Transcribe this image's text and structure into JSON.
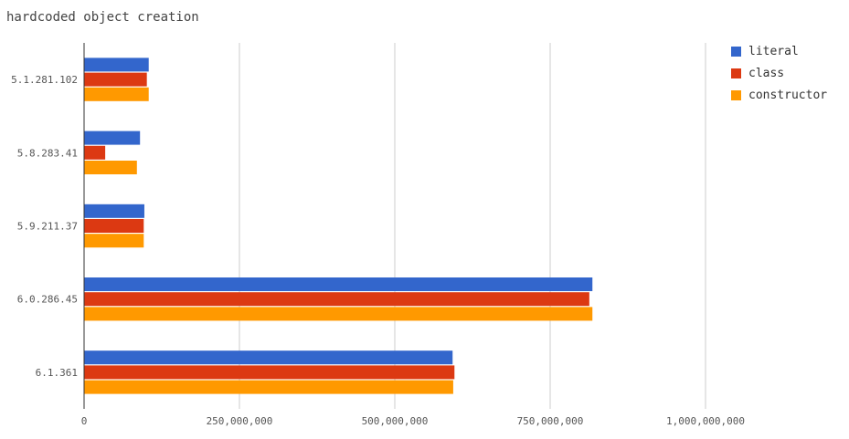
{
  "chart_data": {
    "type": "bar",
    "orientation": "horizontal",
    "title": "hardcoded object creation",
    "categories": [
      "5.1.281.102",
      "5.8.283.41",
      "5.9.211.37",
      "6.0.286.45",
      "6.1.361"
    ],
    "series": [
      {
        "name": "literal",
        "color": "#3366cc",
        "values": [
          104000000,
          90000000,
          97000000,
          818000000,
          593000000
        ]
      },
      {
        "name": "class",
        "color": "#dc3912",
        "values": [
          101000000,
          34000000,
          96000000,
          813000000,
          596000000
        ]
      },
      {
        "name": "constructor",
        "color": "#ff9900",
        "values": [
          104000000,
          85000000,
          96000000,
          818000000,
          594000000
        ]
      }
    ],
    "xlim": [
      0,
      1000000000
    ],
    "xticks": [
      0,
      250000000,
      500000000,
      750000000,
      1000000000
    ],
    "xtick_labels": [
      "0",
      "250,000,000",
      "500,000,000",
      "750,000,000",
      "1,000,000,000"
    ],
    "grid": "vertical",
    "legend_position": "right"
  }
}
